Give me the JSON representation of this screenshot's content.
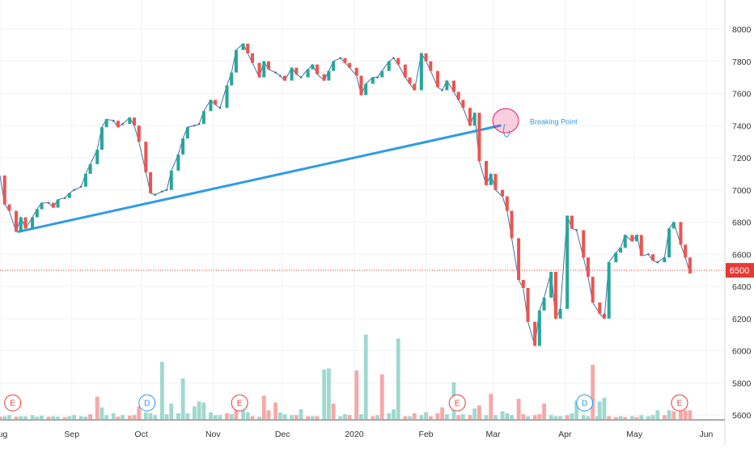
{
  "chart_data": {
    "type": "candlestick",
    "title": "",
    "xlabel": "",
    "ylabel": "",
    "ylim": [
      5560,
      8100
    ],
    "y_ticks": [
      5600,
      5800,
      6000,
      6200,
      6400,
      6600,
      6800,
      7000,
      7200,
      7400,
      7600,
      7800,
      8000
    ],
    "x_labels": [
      {
        "label": "Aug",
        "day": 0
      },
      {
        "label": "Sep",
        "day": 31
      },
      {
        "label": "Oct",
        "day": 61
      },
      {
        "label": "Nov",
        "day": 92
      },
      {
        "label": "Dec",
        "day": 122
      },
      {
        "label": "2020",
        "day": 153
      },
      {
        "label": "Feb",
        "day": 184
      },
      {
        "label": "Mar",
        "day": 213
      },
      {
        "label": "Apr",
        "day": 244
      },
      {
        "label": "May",
        "day": 274
      },
      {
        "label": "Jun",
        "day": 305
      }
    ],
    "grid": true,
    "colors": {
      "up": "#26a69a",
      "down": "#ef5350",
      "up_vol": "#9fd8cf",
      "down_vol": "#f6a8a6",
      "line": "#4a6fa5",
      "trend": "#2f9be7",
      "price_line": "#e53935"
    },
    "current_price": {
      "value": 6500,
      "label": "6500"
    },
    "trendline": {
      "start": {
        "day": 8,
        "price": 6740
      },
      "end": {
        "day": 216,
        "price": 7400
      }
    },
    "annotation": {
      "text": "Breaking Point",
      "day": 217,
      "price": 7410
    },
    "event_markers": [
      {
        "letter": "E",
        "day": 2,
        "type": "earnings"
      },
      {
        "letter": "D",
        "day": 60,
        "type": "dividend"
      },
      {
        "letter": "E",
        "day": 100,
        "type": "earnings"
      },
      {
        "letter": "E",
        "day": 194,
        "type": "earnings"
      },
      {
        "letter": "D",
        "day": 249,
        "type": "dividend"
      },
      {
        "letter": "E",
        "day": 290,
        "type": "earnings"
      }
    ],
    "series": [
      {
        "name": "price",
        "close": [
          [
            0,
            7090
          ],
          [
            2,
            6910
          ],
          [
            4,
            6870
          ],
          [
            7,
            6740
          ],
          [
            9,
            6830
          ],
          [
            11,
            6760
          ],
          [
            14,
            6830
          ],
          [
            16,
            6880
          ],
          [
            18,
            6920
          ],
          [
            21,
            6920
          ],
          [
            23,
            6890
          ],
          [
            25,
            6940
          ],
          [
            28,
            6950
          ],
          [
            30,
            6980
          ],
          [
            32,
            7000
          ],
          [
            35,
            7020
          ],
          [
            37,
            7100
          ],
          [
            39,
            7160
          ],
          [
            42,
            7250
          ],
          [
            44,
            7390
          ],
          [
            46,
            7440
          ],
          [
            49,
            7430
          ],
          [
            51,
            7390
          ],
          [
            53,
            7410
          ],
          [
            56,
            7450
          ],
          [
            58,
            7400
          ],
          [
            60,
            7300
          ],
          [
            63,
            7110
          ],
          [
            65,
            6980
          ],
          [
            67,
            6970
          ],
          [
            70,
            6990
          ],
          [
            72,
            7000
          ],
          [
            74,
            7120
          ],
          [
            77,
            7220
          ],
          [
            79,
            7320
          ],
          [
            81,
            7390
          ],
          [
            84,
            7400
          ],
          [
            86,
            7410
          ],
          [
            88,
            7490
          ],
          [
            91,
            7560
          ],
          [
            93,
            7530
          ],
          [
            95,
            7510
          ],
          [
            98,
            7650
          ],
          [
            100,
            7730
          ],
          [
            102,
            7870
          ],
          [
            105,
            7910
          ],
          [
            107,
            7850
          ],
          [
            109,
            7790
          ],
          [
            112,
            7700
          ],
          [
            114,
            7800
          ],
          [
            116,
            7750
          ],
          [
            119,
            7730
          ],
          [
            121,
            7710
          ],
          [
            123,
            7680
          ],
          [
            126,
            7760
          ],
          [
            128,
            7720
          ],
          [
            130,
            7700
          ],
          [
            133,
            7750
          ],
          [
            135,
            7780
          ],
          [
            137,
            7720
          ],
          [
            140,
            7680
          ],
          [
            142,
            7740
          ],
          [
            144,
            7800
          ],
          [
            147,
            7820
          ],
          [
            149,
            7790
          ],
          [
            151,
            7760
          ],
          [
            154,
            7710
          ],
          [
            156,
            7590
          ],
          [
            158,
            7660
          ],
          [
            161,
            7700
          ],
          [
            163,
            7700
          ],
          [
            165,
            7740
          ],
          [
            168,
            7800
          ],
          [
            170,
            7820
          ],
          [
            172,
            7780
          ],
          [
            175,
            7700
          ],
          [
            177,
            7660
          ],
          [
            179,
            7620
          ],
          [
            182,
            7850
          ],
          [
            184,
            7800
          ],
          [
            186,
            7740
          ],
          [
            189,
            7640
          ],
          [
            191,
            7620
          ],
          [
            193,
            7680
          ],
          [
            196,
            7610
          ],
          [
            198,
            7560
          ],
          [
            200,
            7510
          ],
          [
            203,
            7400
          ],
          [
            205,
            7480
          ],
          [
            207,
            7180
          ],
          [
            210,
            7030
          ],
          [
            212,
            7100
          ],
          [
            214,
            7000
          ],
          [
            217,
            6960
          ],
          [
            219,
            6870
          ],
          [
            221,
            6700
          ],
          [
            224,
            6440
          ],
          [
            226,
            6390
          ],
          [
            228,
            6180
          ],
          [
            231,
            6030
          ],
          [
            233,
            6250
          ],
          [
            235,
            6330
          ],
          [
            238,
            6490
          ],
          [
            240,
            6200
          ],
          [
            242,
            6260
          ],
          [
            245,
            6840
          ],
          [
            247,
            6760
          ],
          [
            249,
            6750
          ],
          [
            252,
            6580
          ],
          [
            254,
            6460
          ],
          [
            256,
            6300
          ],
          [
            259,
            6230
          ],
          [
            261,
            6200
          ],
          [
            263,
            6550
          ],
          [
            266,
            6610
          ],
          [
            268,
            6640
          ],
          [
            270,
            6720
          ],
          [
            273,
            6680
          ],
          [
            275,
            6720
          ],
          [
            277,
            6590
          ],
          [
            280,
            6600
          ],
          [
            282,
            6560
          ],
          [
            284,
            6550
          ],
          [
            287,
            6580
          ],
          [
            289,
            6760
          ],
          [
            291,
            6800
          ],
          [
            294,
            6660
          ],
          [
            296,
            6580
          ],
          [
            298,
            6480
          ]
        ]
      },
      {
        "name": "volume",
        "bars": [
          [
            0,
            0.25,
            "d"
          ],
          [
            2,
            0.3,
            "u"
          ],
          [
            4,
            0.4,
            "u"
          ],
          [
            7,
            0.25,
            "d"
          ],
          [
            9,
            0.3,
            "u"
          ],
          [
            11,
            0.28,
            "u"
          ],
          [
            14,
            0.4,
            "u"
          ],
          [
            16,
            0.25,
            "u"
          ],
          [
            18,
            0.35,
            "u"
          ],
          [
            21,
            0.25,
            "d"
          ],
          [
            23,
            0.3,
            "u"
          ],
          [
            25,
            0.25,
            "u"
          ],
          [
            28,
            0.2,
            "d"
          ],
          [
            30,
            0.3,
            "u"
          ],
          [
            32,
            0.4,
            "u"
          ],
          [
            35,
            0.3,
            "u"
          ],
          [
            37,
            0.25,
            "u"
          ],
          [
            39,
            0.5,
            "d"
          ],
          [
            42,
            2.3,
            "d"
          ],
          [
            44,
            1.2,
            "u"
          ],
          [
            46,
            0.4,
            "u"
          ],
          [
            49,
            0.6,
            "u"
          ],
          [
            51,
            0.25,
            "d"
          ],
          [
            53,
            0.4,
            "u"
          ],
          [
            56,
            0.35,
            "d"
          ],
          [
            58,
            0.4,
            "d"
          ],
          [
            60,
            1.3,
            "d"
          ],
          [
            63,
            0.7,
            "u"
          ],
          [
            65,
            0.6,
            "u"
          ],
          [
            67,
            0.4,
            "u"
          ],
          [
            70,
            5.9,
            "u"
          ],
          [
            72,
            0.5,
            "u"
          ],
          [
            74,
            1.6,
            "u"
          ],
          [
            77,
            0.6,
            "u"
          ],
          [
            79,
            4.2,
            "u"
          ],
          [
            81,
            0.6,
            "u"
          ],
          [
            84,
            1.3,
            "u"
          ],
          [
            86,
            1.8,
            "u"
          ],
          [
            88,
            1.7,
            "u"
          ],
          [
            91,
            0.7,
            "u"
          ],
          [
            93,
            0.4,
            "u"
          ],
          [
            95,
            0.4,
            "u"
          ],
          [
            98,
            0.6,
            "d"
          ],
          [
            100,
            0.5,
            "u"
          ],
          [
            102,
            2.4,
            "d"
          ],
          [
            105,
            1.7,
            "u"
          ],
          [
            107,
            0.7,
            "u"
          ],
          [
            109,
            0.3,
            "d"
          ],
          [
            112,
            0.25,
            "u"
          ],
          [
            114,
            2.4,
            "d"
          ],
          [
            116,
            0.9,
            "d"
          ],
          [
            119,
            1.7,
            "d"
          ],
          [
            121,
            0.7,
            "u"
          ],
          [
            123,
            0.5,
            "u"
          ],
          [
            126,
            0.4,
            "u"
          ],
          [
            128,
            0.4,
            "d"
          ],
          [
            130,
            1.0,
            "u"
          ],
          [
            133,
            0.3,
            "d"
          ],
          [
            135,
            0.3,
            "u"
          ],
          [
            137,
            0.3,
            "d"
          ],
          [
            140,
            5.1,
            "u"
          ],
          [
            142,
            5.2,
            "u"
          ],
          [
            144,
            1.6,
            "d"
          ],
          [
            147,
            0.3,
            "u"
          ],
          [
            149,
            0.5,
            "u"
          ],
          [
            151,
            0.4,
            "d"
          ],
          [
            154,
            5.0,
            "d"
          ],
          [
            156,
            0.5,
            "u"
          ],
          [
            158,
            8.7,
            "u"
          ],
          [
            161,
            0.3,
            "d"
          ],
          [
            163,
            0.4,
            "u"
          ],
          [
            165,
            4.6,
            "d"
          ],
          [
            168,
            0.6,
            "u"
          ],
          [
            170,
            1.0,
            "u"
          ],
          [
            172,
            8.3,
            "u"
          ],
          [
            175,
            0.3,
            "d"
          ],
          [
            177,
            0.3,
            "u"
          ],
          [
            179,
            0.6,
            "d"
          ],
          [
            182,
            0.4,
            "u"
          ],
          [
            184,
            0.7,
            "u"
          ],
          [
            186,
            0.3,
            "d"
          ],
          [
            189,
            0.6,
            "d"
          ],
          [
            191,
            1.2,
            "d"
          ],
          [
            193,
            0.5,
            "u"
          ],
          [
            196,
            3.8,
            "u"
          ],
          [
            198,
            0.4,
            "d"
          ],
          [
            200,
            0.5,
            "u"
          ],
          [
            203,
            0.4,
            "d"
          ],
          [
            205,
            1.1,
            "u"
          ],
          [
            207,
            1.4,
            "d"
          ],
          [
            210,
            0.4,
            "u"
          ],
          [
            212,
            2.6,
            "d"
          ],
          [
            214,
            0.4,
            "u"
          ],
          [
            217,
            0.8,
            "u"
          ],
          [
            219,
            0.6,
            "u"
          ],
          [
            221,
            0.4,
            "u"
          ],
          [
            224,
            2.1,
            "d"
          ],
          [
            226,
            0.5,
            "d"
          ],
          [
            228,
            0.3,
            "u"
          ],
          [
            231,
            0.4,
            "d"
          ],
          [
            233,
            0.5,
            "d"
          ],
          [
            235,
            1.6,
            "d"
          ],
          [
            238,
            0.4,
            "u"
          ],
          [
            240,
            0.3,
            "u"
          ],
          [
            242,
            0.3,
            "u"
          ],
          [
            245,
            0.4,
            "d"
          ],
          [
            247,
            0.6,
            "u"
          ],
          [
            249,
            1.9,
            "u"
          ],
          [
            252,
            0.4,
            "u"
          ],
          [
            254,
            0.3,
            "u"
          ],
          [
            256,
            5.6,
            "d"
          ],
          [
            258,
            0.3,
            "u"
          ],
          [
            259,
            1.8,
            "u"
          ],
          [
            261,
            2.2,
            "u"
          ],
          [
            263,
            0.3,
            "d"
          ],
          [
            266,
            0.2,
            "d"
          ],
          [
            268,
            0.3,
            "u"
          ],
          [
            270,
            0.2,
            "d"
          ],
          [
            273,
            0.3,
            "u"
          ],
          [
            275,
            0.2,
            "d"
          ],
          [
            277,
            0.4,
            "u"
          ],
          [
            280,
            0.3,
            "u"
          ],
          [
            282,
            0.4,
            "u"
          ],
          [
            284,
            0.9,
            "u"
          ],
          [
            287,
            0.4,
            "d"
          ],
          [
            289,
            0.9,
            "u"
          ],
          [
            291,
            0.8,
            "d"
          ],
          [
            294,
            0.8,
            "d"
          ],
          [
            296,
            0.9,
            "d"
          ],
          [
            298,
            0.9,
            "d"
          ]
        ]
      }
    ]
  }
}
